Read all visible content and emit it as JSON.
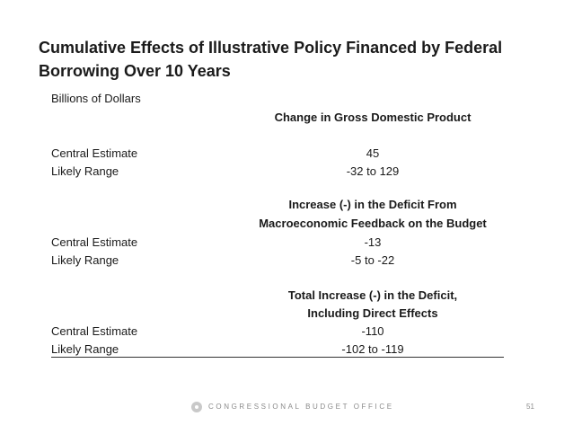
{
  "title": {
    "line1": "Cumulative Effects of Illustrative Policy Financed by Federal",
    "line2": "Borrowing Over 10 Years"
  },
  "units": "Billions of Dollars",
  "sections": [
    {
      "heading_lines": [
        "Change in Gross Domestic Product"
      ],
      "rows": [
        {
          "label": "Central Estimate",
          "value": "45"
        },
        {
          "label": "Likely Range",
          "value": "-32 to 129"
        }
      ]
    },
    {
      "heading_lines": [
        "Increase (-) in the Deficit From",
        "Macroeconomic Feedback on the Budget"
      ],
      "rows": [
        {
          "label": "Central Estimate",
          "value": "-13"
        },
        {
          "label": "Likely Range",
          "value": "-5 to -22"
        }
      ]
    },
    {
      "heading_lines": [
        "Total Increase (-) in the Deficit,",
        "Including Direct Effects"
      ],
      "rows": [
        {
          "label": "Central Estimate",
          "value": "-110"
        },
        {
          "label": "Likely Range",
          "value": "-102 to -119"
        }
      ]
    }
  ],
  "footer": {
    "logo_icon": "cbo-logo-icon",
    "org": "CONGRESSIONAL BUDGET OFFICE",
    "page_number": "51"
  }
}
